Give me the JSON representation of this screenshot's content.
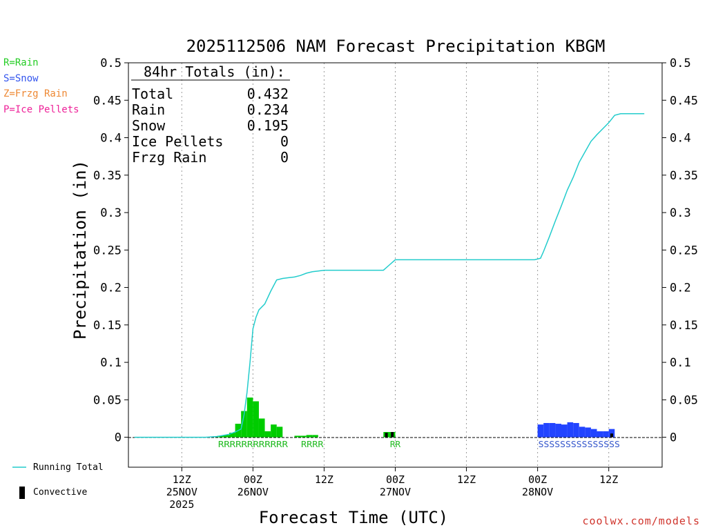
{
  "chart_data": {
    "type": "bar+line",
    "title": "2025112506 NAM Forecast Precipitation KBGM",
    "ylabel": "Precipitation (in)",
    "xlabel": "Forecast Time (UTC)",
    "ylim": [
      -0.04,
      0.5
    ],
    "xlim_hours": [
      -3,
      87
    ],
    "y_ticks": [
      0,
      0.05,
      0.1,
      0.15,
      0.2,
      0.25,
      0.3,
      0.35,
      0.4,
      0.45,
      0.5
    ],
    "y_tick_labels": [
      "0",
      "0.05",
      "0.1",
      "0.15",
      "0.2",
      "0.25",
      "0.3",
      "0.35",
      "0.4",
      "0.45",
      "0.5"
    ],
    "x_ticks": [
      {
        "hour": 6,
        "line1": "12Z",
        "line2": "25NOV",
        "line3": "2025"
      },
      {
        "hour": 18,
        "line1": "00Z",
        "line2": "26NOV",
        "line3": ""
      },
      {
        "hour": 30,
        "line1": "12Z",
        "line2": "",
        "line3": ""
      },
      {
        "hour": 42,
        "line1": "00Z",
        "line2": "27NOV",
        "line3": ""
      },
      {
        "hour": 54,
        "line1": "12Z",
        "line2": "",
        "line3": ""
      },
      {
        "hour": 66,
        "line1": "00Z",
        "line2": "28NOV",
        "line3": ""
      },
      {
        "hour": 78,
        "line1": "12Z",
        "line2": "",
        "line3": ""
      }
    ],
    "totals": {
      "header": "84hr Totals (in):",
      "rows": [
        {
          "label": "Total",
          "value": "0.432"
        },
        {
          "label": "Rain",
          "value": "0.234"
        },
        {
          "label": "Snow",
          "value": "0.195"
        },
        {
          "label": "Ice Pellets",
          "value": "0"
        },
        {
          "label": "Frzg Rain",
          "value": "0"
        }
      ]
    },
    "type_legend": [
      {
        "label": "R=Rain",
        "color": "#22cc22"
      },
      {
        "label": "S=Snow",
        "color": "#3355ee"
      },
      {
        "label": "Z=Frzg Rain",
        "color": "#ee8833"
      },
      {
        "label": "P=Ice Pellets",
        "color": "#ee2299"
      }
    ],
    "series_legend": {
      "running_total": "Running Total",
      "convective": "Convective"
    },
    "bars": [
      {
        "hour": 12,
        "value": 0.001,
        "type": "rain"
      },
      {
        "hour": 13,
        "value": 0.002,
        "type": "rain"
      },
      {
        "hour": 14,
        "value": 0.003,
        "type": "rain"
      },
      {
        "hour": 15,
        "value": 0.006,
        "type": "rain"
      },
      {
        "hour": 16,
        "value": 0.018,
        "type": "rain"
      },
      {
        "hour": 17,
        "value": 0.035,
        "type": "rain"
      },
      {
        "hour": 18,
        "value": 0.053,
        "type": "rain"
      },
      {
        "hour": 19,
        "value": 0.048,
        "type": "rain"
      },
      {
        "hour": 20,
        "value": 0.025,
        "type": "rain"
      },
      {
        "hour": 21,
        "value": 0.008,
        "type": "rain"
      },
      {
        "hour": 22,
        "value": 0.017,
        "type": "rain"
      },
      {
        "hour": 23,
        "value": 0.014,
        "type": "rain"
      },
      {
        "hour": 26,
        "value": 0.002,
        "type": "rain"
      },
      {
        "hour": 27,
        "value": 0.002,
        "type": "rain"
      },
      {
        "hour": 28,
        "value": 0.003,
        "type": "rain"
      },
      {
        "hour": 29,
        "value": 0.003,
        "type": "rain"
      },
      {
        "hour": 41,
        "value": 0.007,
        "type": "rain"
      },
      {
        "hour": 42,
        "value": 0.007,
        "type": "rain"
      },
      {
        "hour": 67,
        "value": 0.017,
        "type": "snow"
      },
      {
        "hour": 68,
        "value": 0.019,
        "type": "snow"
      },
      {
        "hour": 69,
        "value": 0.019,
        "type": "snow"
      },
      {
        "hour": 70,
        "value": 0.018,
        "type": "snow"
      },
      {
        "hour": 71,
        "value": 0.017,
        "type": "snow"
      },
      {
        "hour": 72,
        "value": 0.02,
        "type": "snow"
      },
      {
        "hour": 73,
        "value": 0.019,
        "type": "snow"
      },
      {
        "hour": 74,
        "value": 0.014,
        "type": "snow"
      },
      {
        "hour": 75,
        "value": 0.013,
        "type": "snow"
      },
      {
        "hour": 76,
        "value": 0.011,
        "type": "snow"
      },
      {
        "hour": 77,
        "value": 0.008,
        "type": "snow"
      },
      {
        "hour": 78,
        "value": 0.008,
        "type": "snow"
      },
      {
        "hour": 79,
        "value": 0.011,
        "type": "snow"
      }
    ],
    "convective": [
      {
        "hour": 41,
        "value": 0.006
      },
      {
        "hour": 42,
        "value": 0.007
      },
      {
        "hour": 79,
        "value": 0.005
      }
    ],
    "type_letters": [
      {
        "text": "RRRRRRRRRRRR",
        "start_hour": 12,
        "end_hour": 24,
        "type": "rain"
      },
      {
        "text": "RRRR",
        "start_hour": 26,
        "end_hour": 30,
        "type": "rain"
      },
      {
        "text": "RR",
        "start_hour": 41,
        "end_hour": 43,
        "type": "rain"
      },
      {
        "text": "SSSSSSSSSSSSSSS",
        "start_hour": 66,
        "end_hour": 80,
        "type": "snow"
      }
    ],
    "running_total": {
      "x": [
        -2,
        10,
        12,
        14,
        15,
        16,
        16.5,
        17,
        17.5,
        18,
        18.5,
        19,
        20,
        21,
        22,
        23,
        24,
        25,
        26,
        27,
        28,
        29,
        30,
        32,
        36,
        40,
        41,
        42,
        45,
        50,
        55,
        60,
        64,
        65.5,
        66.5,
        67,
        68,
        69,
        70,
        71,
        72,
        73,
        74,
        75,
        76,
        77,
        78,
        79,
        80,
        82.5,
        84
      ],
      "y": [
        0,
        0,
        0.001,
        0.004,
        0.007,
        0.011,
        0.03,
        0.06,
        0.1,
        0.145,
        0.16,
        0.17,
        0.178,
        0.195,
        0.21,
        0.212,
        0.213,
        0.214,
        0.216,
        0.219,
        0.221,
        0.222,
        0.223,
        0.223,
        0.223,
        0.223,
        0.23,
        0.237,
        0.237,
        0.237,
        0.237,
        0.237,
        0.237,
        0.237,
        0.239,
        0.248,
        0.268,
        0.289,
        0.309,
        0.33,
        0.347,
        0.367,
        0.381,
        0.395,
        0.404,
        0.412,
        0.42,
        0.43,
        0.432,
        0.432,
        0.432
      ]
    },
    "colors": {
      "rain": "#00cc00",
      "snow": "#2244ff",
      "rain_text": "#22bb22",
      "snow_text": "#3355cc",
      "line": "#22cccc",
      "convective": "#000000"
    }
  },
  "credit": "coolwx.com/models"
}
